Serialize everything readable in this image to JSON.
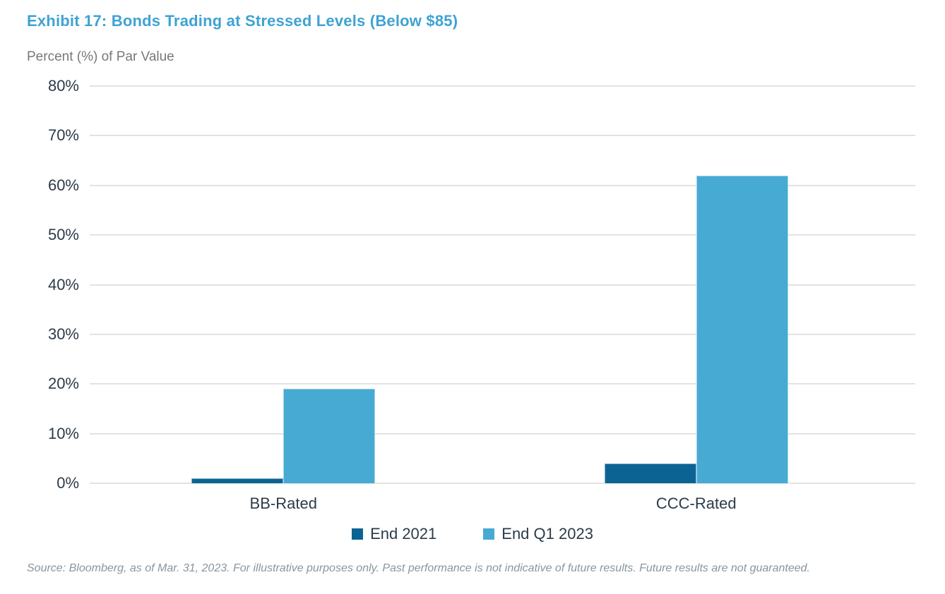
{
  "title": "Exhibit 17: Bonds Trading at Stressed Levels (Below $85)",
  "axis_caption": "Percent (%) of Par Value",
  "source_note": "Source: Bloomberg, as of Mar. 31, 2023. For illustrative purposes only. Past performance is not indicative of future results. Future results are not guaranteed.",
  "colors": {
    "title": "#3EA3D3",
    "subtitle_text": "#75787B",
    "axis_text": "#2C3B49",
    "gridline": "#E3E3DE",
    "source_text": "#8796A0",
    "series_end_2021": "#0B6394",
    "series_end_q1_2023": "#46AAD3"
  },
  "chart_data": {
    "type": "bar",
    "title": "Exhibit 17: Bonds Trading at Stressed Levels (Below $85)",
    "ylabel": "Percent (%) of Par Value",
    "xlabel": "",
    "categories": [
      "BB-Rated",
      "CCC-Rated"
    ],
    "series": [
      {
        "name": "End 2021",
        "color": "#0B6394",
        "values": [
          1,
          4
        ]
      },
      {
        "name": "End Q1 2023",
        "color": "#46AAD3",
        "values": [
          19,
          62
        ]
      }
    ],
    "ylim": [
      0,
      80
    ],
    "yticks": [
      "0%",
      "10%",
      "20%",
      "30%",
      "40%",
      "50%",
      "60%",
      "70%",
      "80%"
    ],
    "ytick_values": [
      0,
      10,
      20,
      30,
      40,
      50,
      60,
      70,
      80
    ],
    "grid": true,
    "legend_position": "bottom"
  },
  "legend": {
    "items": [
      {
        "label": "End 2021",
        "color": "#0B6394"
      },
      {
        "label": "End Q1 2023",
        "color": "#46AAD3"
      }
    ]
  }
}
